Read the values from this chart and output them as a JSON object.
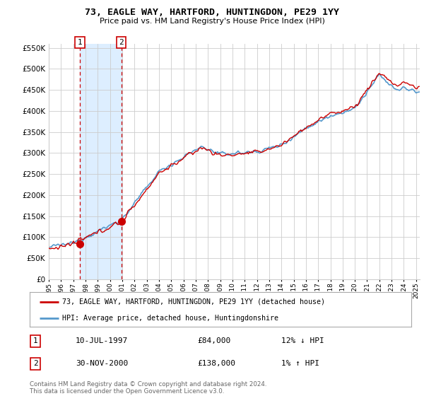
{
  "title": "73, EAGLE WAY, HARTFORD, HUNTINGDON, PE29 1YY",
  "subtitle": "Price paid vs. HM Land Registry's House Price Index (HPI)",
  "hpi_label": "HPI: Average price, detached house, Huntingdonshire",
  "property_label": "73, EAGLE WAY, HARTFORD, HUNTINGDON, PE29 1YY (detached house)",
  "sale1_date": "10-JUL-1997",
  "sale1_price": 84000,
  "sale1_hpi": "12% ↓ HPI",
  "sale2_date": "30-NOV-2000",
  "sale2_price": 138000,
  "sale2_hpi": "1% ↑ HPI",
  "footer": "Contains HM Land Registry data © Crown copyright and database right 2024.\nThis data is licensed under the Open Government Licence v3.0.",
  "ylim": [
    0,
    560000
  ],
  "yticks": [
    0,
    50000,
    100000,
    150000,
    200000,
    250000,
    300000,
    350000,
    400000,
    450000,
    500000,
    550000
  ],
  "background_color": "#f0f0f0",
  "plot_bg_color": "#ffffff",
  "hpi_color": "#5599cc",
  "property_line_color": "#cc0000",
  "sale_marker_color": "#cc0000",
  "vline_color": "#cc0000",
  "shade_color": "#ddeeff",
  "grid_color": "#cccccc",
  "title_color": "#000000",
  "sale1_x_year": 1997.53,
  "sale2_x_year": 2000.92,
  "xlim_start": 1995,
  "xlim_end": 2025.3
}
